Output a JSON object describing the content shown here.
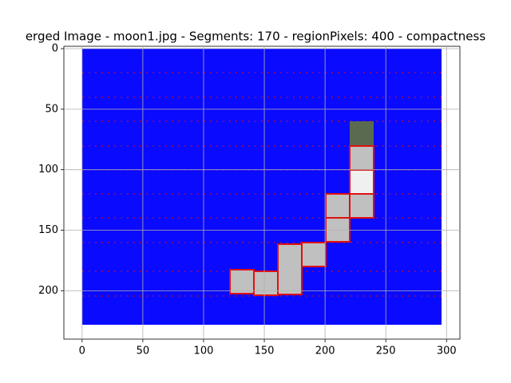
{
  "chart_data": {
    "type": "image",
    "title": "erged Image - moon1.jpg - Segments: 170 - regionPixels: 400 - compactness",
    "xlim": [
      -15,
      311
    ],
    "ylim": [
      240,
      -2
    ],
    "xticks": [
      0,
      50,
      100,
      150,
      200,
      250,
      300
    ],
    "yticks": [
      0,
      50,
      100,
      150,
      200
    ],
    "grid": true
  }
}
